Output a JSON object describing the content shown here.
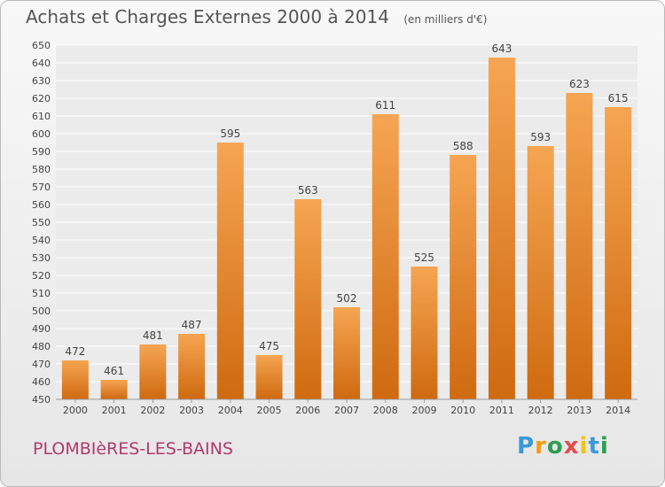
{
  "header": {
    "title": "Achats et Charges Externes 2000 à 2014",
    "unit": "(en milliers d'€)"
  },
  "footer": {
    "commune": "PLOMBIèRES-LES-BAINS",
    "logo_letters": [
      "P",
      "r",
      "o",
      "x",
      "i",
      "t",
      "i"
    ],
    "logo_colors": [
      "#3a9ad9",
      "#f39c12",
      "#2e9e4f",
      "#e34c4c",
      "#f1c40f",
      "#3a9ad9",
      "#2e9e4f"
    ]
  },
  "chart_data": {
    "type": "bar",
    "title": "Achats et Charges Externes 2000 à 2014",
    "subtitle": "(en milliers d'€)",
    "categories": [
      "2000",
      "2001",
      "2002",
      "2003",
      "2004",
      "2005",
      "2006",
      "2007",
      "2008",
      "2009",
      "2010",
      "2011",
      "2012",
      "2013",
      "2014"
    ],
    "values": [
      472,
      461,
      481,
      487,
      595,
      475,
      563,
      502,
      611,
      525,
      588,
      643,
      593,
      623,
      615
    ],
    "ylim": [
      450,
      650
    ],
    "yticks": [
      450,
      460,
      470,
      480,
      490,
      500,
      510,
      520,
      530,
      540,
      550,
      560,
      570,
      580,
      590,
      600,
      610,
      620,
      630,
      640,
      650
    ],
    "grid": true,
    "bar_color_top": "#f6a552",
    "bar_color_bottom": "#cf6a10"
  }
}
